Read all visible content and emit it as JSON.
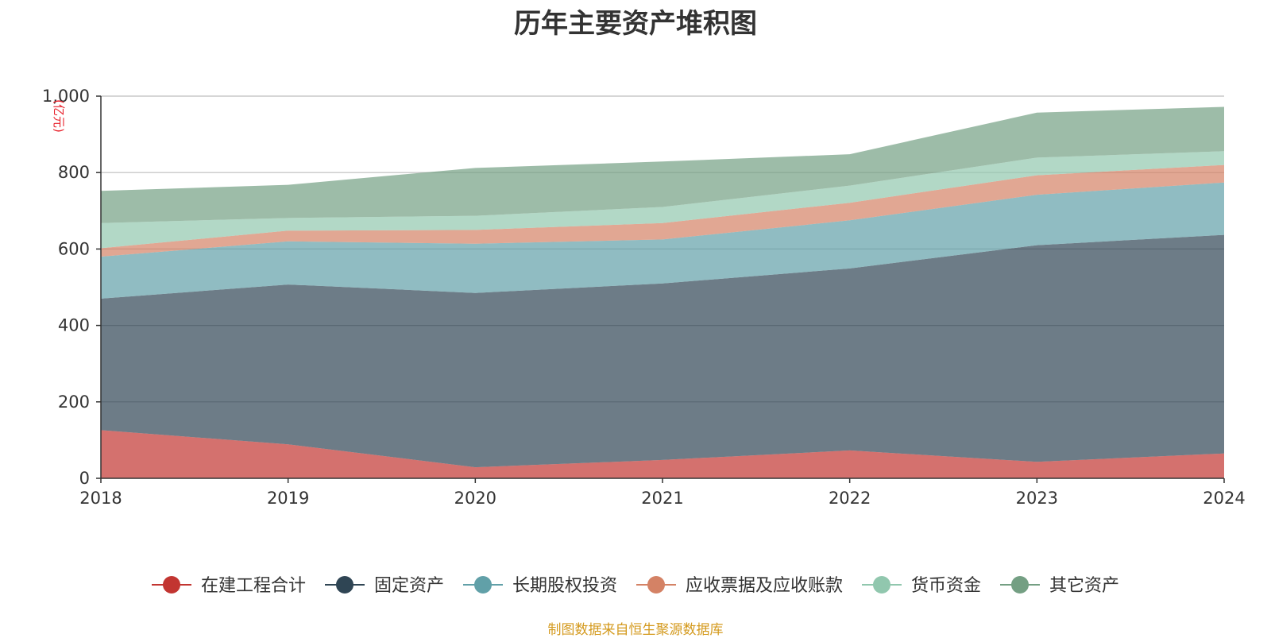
{
  "chart_data": {
    "type": "area",
    "stacked": true,
    "title": "历年主要资产堆积图",
    "ylabel": "(亿元)",
    "x": [
      "2018",
      "2019",
      "2020",
      "2021",
      "2022",
      "2023",
      "2024"
    ],
    "ylim": [
      0,
      1000
    ],
    "yticks": [
      0,
      200,
      400,
      600,
      800,
      1000
    ],
    "ytick_labels": [
      "0",
      "200",
      "400",
      "600",
      "800",
      "1,000"
    ],
    "grid": true,
    "legend_position": "bottom",
    "series": [
      {
        "name": "在建工程合计",
        "color": "#c23531",
        "values": [
          126,
          89,
          29,
          48,
          73,
          43,
          65
        ]
      },
      {
        "name": "固定资产",
        "color": "#2f4554",
        "values": [
          344,
          418,
          456,
          462,
          476,
          567,
          572
        ]
      },
      {
        "name": "长期股权投资",
        "color": "#61a0a8",
        "values": [
          110,
          113,
          129,
          115,
          126,
          132,
          137
        ]
      },
      {
        "name": "应收票据及应收账款",
        "color": "#d48265",
        "values": [
          22,
          28,
          36,
          43,
          46,
          51,
          46
        ]
      },
      {
        "name": "货币资金",
        "color": "#91c7ae",
        "values": [
          66,
          33,
          37,
          42,
          45,
          46,
          36
        ]
      },
      {
        "name": "其它资产",
        "color": "#749f83",
        "values": [
          84,
          87,
          125,
          119,
          82,
          118,
          116
        ]
      }
    ]
  },
  "footer": {
    "source": "制图数据来自恒生聚源数据库"
  }
}
